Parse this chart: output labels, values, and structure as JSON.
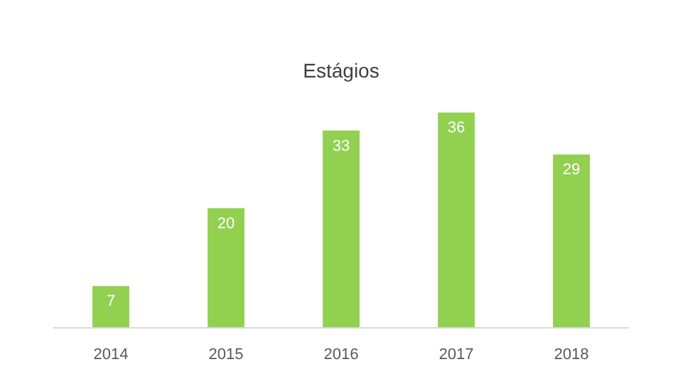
{
  "chart_data": {
    "type": "bar",
    "title": "Estágios",
    "categories": [
      "2014",
      "2015",
      "2016",
      "2017",
      "2018"
    ],
    "values": [
      7,
      20,
      33,
      36,
      29
    ],
    "color": "#92d050",
    "data_labels": true
  }
}
